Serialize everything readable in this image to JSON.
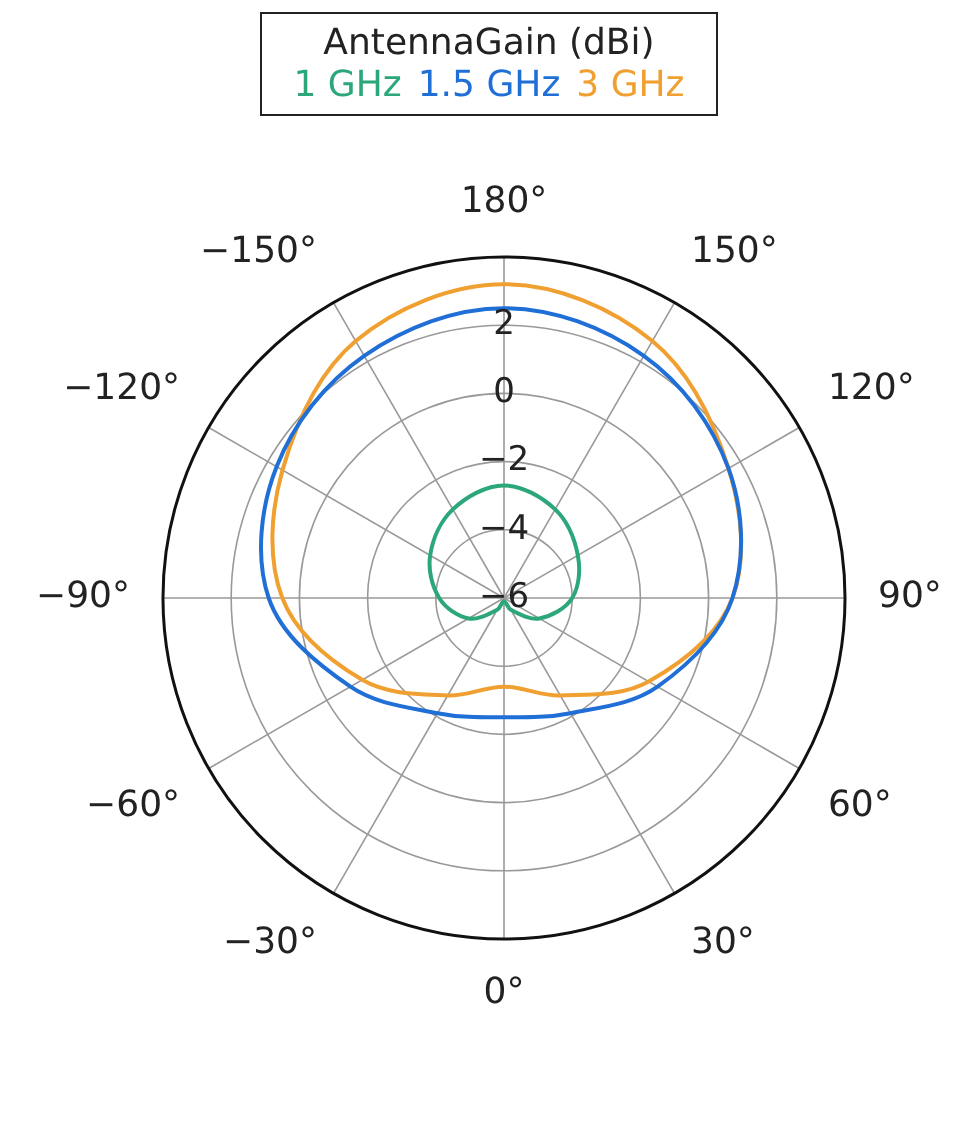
{
  "chart_data": {
    "type": "radar",
    "legend_title": "AntennaGain (dBi)",
    "legend": "top",
    "grid": true,
    "marker": "none",
    "categories": [
      "180°",
      "150°",
      "120°",
      "90°",
      "60°",
      "30°",
      "0°",
      "−30°",
      "−60°",
      "−90°",
      "−120°",
      "−150°"
    ],
    "ylim": [
      -6,
      4
    ],
    "yticks": [
      -6,
      -4,
      -2,
      0,
      2
    ],
    "series": [
      {
        "name": "1 GHz",
        "color": "#2ca77a",
        "values": [
          -2.7,
          -3.0,
          -3.5,
          -4.0,
          -4.8,
          -5.6,
          -5.9,
          -5.6,
          -4.8,
          -4.1,
          -3.5,
          -3.0
        ]
      },
      {
        "name": "1.5 GHz",
        "color": "#1f6fd6",
        "values": [
          2.5,
          2.2,
          1.6,
          0.7,
          -0.8,
          -2.1,
          -2.5,
          -2.1,
          -0.8,
          0.9,
          1.7,
          2.2
        ]
      },
      {
        "name": "3 GHz",
        "color": "#f0a030",
        "values": [
          3.2,
          2.7,
          1.6,
          0.7,
          -1.1,
          -2.7,
          -3.4,
          -2.7,
          -1.2,
          0.5,
          1.5,
          2.7
        ]
      }
    ]
  }
}
